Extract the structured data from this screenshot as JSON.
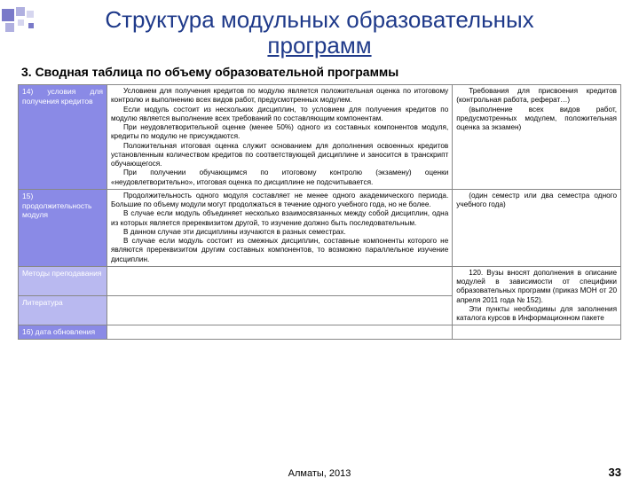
{
  "colors": {
    "title": "#1f3a8a",
    "row_label_bg_1": "#8a8ae6",
    "row_label_bg_2": "#8a8ae6",
    "row_label_bg_3": "#b9b9f0",
    "row_label_bg_4": "#b9b9f0",
    "row_label_bg_5": "#8a8ae6",
    "deco1": "#7a7ac9",
    "deco2": "#b0b0e0",
    "deco3": "#d6d6ef"
  },
  "title_line1": "Структура модульных образовательных",
  "title_line2": "программ",
  "subtitle": "3. Сводная таблица по объему образовательной программы",
  "rows": [
    {
      "label": "14) условия для получения кредитов",
      "mid_paras": [
        "Условием для получения кредитов по модулю является положительная оценка по итоговому контролю и выполнению всех видов работ, предусмотренных модулем.",
        "Если модуль состоит из нескольких дисциплин, то условием для получения кредитов по модулю является выполнение всех требований по составляющим компонентам.",
        "При неудовлетворительной оценке (менее 50%) одного из составных компонентов модуля, кредиты по модулю не присуждаются.",
        "Положительная итоговая оценка служит основанием для дополнения освоенных кредитов установленным количеством кредитов по соответствующей дисциплине и заносится в транскрипт обучающегося.",
        "При получении обучающимся по итоговому контролю (экзамену) оценки «неудовлетворительно», итоговая оценка по дисциплине не подсчитывается."
      ],
      "right_paras": [
        "Требования для присвоения кредитов (контрольная работа, реферат…)",
        "(выполнение всех видов работ, предусмотренных модулем, положительная оценка за экзамен)"
      ]
    },
    {
      "label": "15) продолжительность модуля",
      "mid_paras": [
        "Продолжительность одного модуля составляет не менее одного академического периода. Большие по объему модули могут продолжаться в течение одного учебного года, но не более.",
        "В случае если модуль объединяет несколько взаимосвязанных между собой дисциплин, одна из которых является пререквизитом другой, то изучение должно быть последовательным.",
        "В данном случае эти дисциплины изучаются в разных семестрах.",
        "В случае если модуль состоит из смежных дисциплин, составные компоненты которого не являются пререквизитом другим составных компонентов, то возможно параллельное изучение дисциплин."
      ],
      "right_paras": [
        "(один семестр или два семестра одного учебного года)"
      ]
    },
    {
      "label": "Методы преподавания",
      "mid_paras": [],
      "right_paras": [
        "120. Вузы вносят дополнения в описание модулей в зависимости от специфики образовательных программ (приказ МОН от 20 апреля 2011 года № 152).",
        "Эти пункты необходимы для заполнения каталога курсов в Информационном пакете"
      ],
      "right_rowspan": 2
    },
    {
      "label": "Литература",
      "mid_paras": []
    },
    {
      "label": "16) дата обновления",
      "mid_paras": [],
      "right_paras": []
    }
  ],
  "footer_city": "Алматы, 2013",
  "footer_page": "33"
}
